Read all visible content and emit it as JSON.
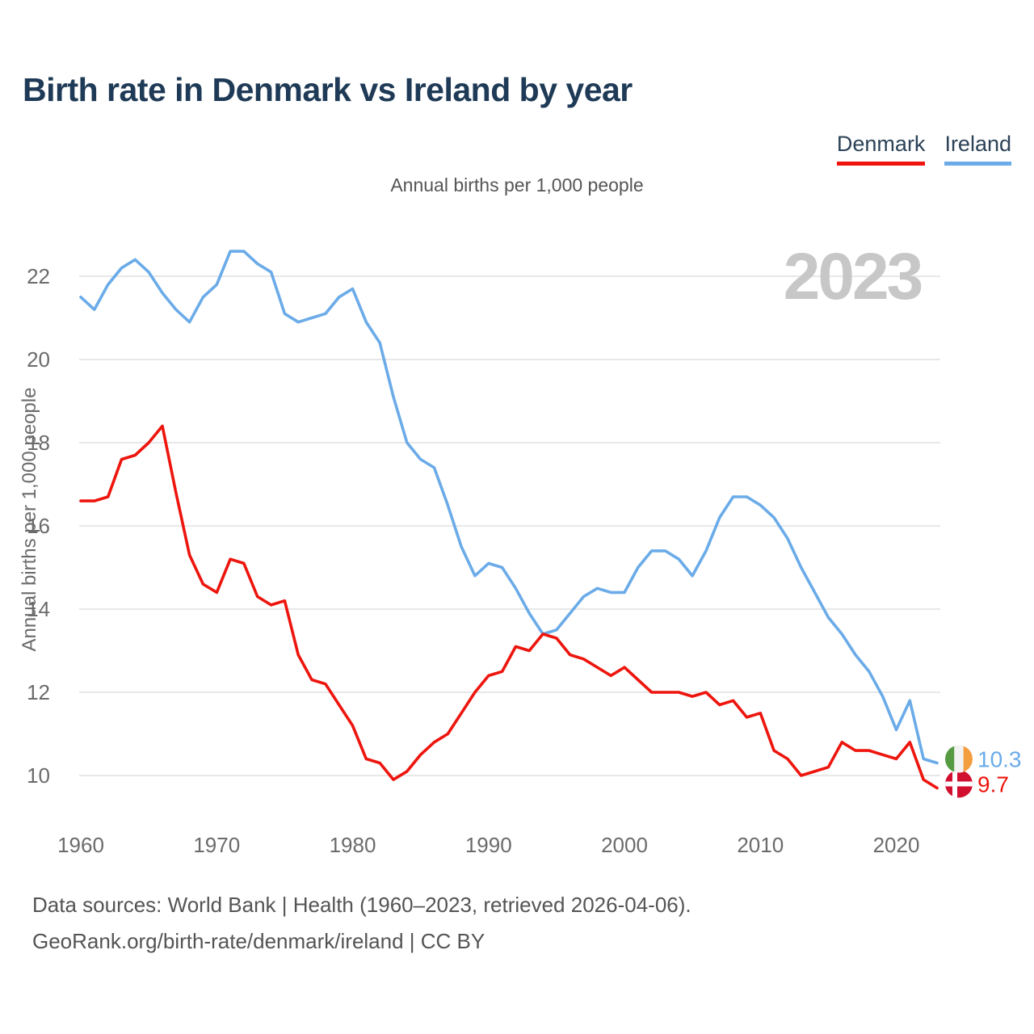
{
  "page": {
    "title": "Birth rate in Denmark vs Ireland by year",
    "subtitle": "Annual births per 1,000 people",
    "watermark": "2023",
    "footer_line1": "Data sources: World Bank | Health (1960–2023, retrieved 2026-04-06).",
    "footer_line2": "GeoRank.org/birth-rate/denmark/ireland | CC BY"
  },
  "legend": [
    {
      "label": "Denmark",
      "color": "#ed150d"
    },
    {
      "label": "Ireland",
      "color": "#6aabe8"
    }
  ],
  "colors": {
    "title": "#1e3a56",
    "grid": "#e8e8e8",
    "tick_text": "#6b6b6b",
    "watermark": "#c7c7c7",
    "denmark_line": "#ed150d",
    "ireland_line": "#6aabe8",
    "flag_ireland_green": "#569a42",
    "flag_ireland_white": "#f2f2f2",
    "flag_ireland_orange": "#f49d3f",
    "flag_denmark_red": "#d11030",
    "flag_denmark_white": "#ffffff"
  },
  "chart_data": {
    "type": "line",
    "title": "Birth rate in Denmark vs Ireland by year",
    "subtitle": "Annual births per 1,000 people",
    "xlabel": "",
    "ylabel": "Annual births per 1,000 people",
    "grid": "horizontal",
    "legend_position": "top-right",
    "watermark": "2023",
    "x_ticks": [
      1960,
      1970,
      1980,
      1990,
      2000,
      2010,
      2020
    ],
    "y_ticks": [
      10,
      12,
      14,
      16,
      18,
      20,
      22
    ],
    "ylim": [
      9.3,
      23.0
    ],
    "x": [
      1960,
      1961,
      1962,
      1963,
      1964,
      1965,
      1966,
      1967,
      1968,
      1969,
      1970,
      1971,
      1972,
      1973,
      1974,
      1975,
      1976,
      1977,
      1978,
      1979,
      1980,
      1981,
      1982,
      1983,
      1984,
      1985,
      1986,
      1987,
      1988,
      1989,
      1990,
      1991,
      1992,
      1993,
      1994,
      1995,
      1996,
      1997,
      1998,
      1999,
      2000,
      2001,
      2002,
      2003,
      2004,
      2005,
      2006,
      2007,
      2008,
      2009,
      2010,
      2011,
      2012,
      2013,
      2014,
      2015,
      2016,
      2017,
      2018,
      2019,
      2020,
      2021,
      2022,
      2023
    ],
    "series": [
      {
        "name": "Denmark",
        "color": "#ed150d",
        "end_label": "9.7",
        "flag": "denmark",
        "values": [
          16.6,
          16.6,
          16.7,
          17.6,
          17.7,
          18.0,
          18.4,
          16.8,
          15.3,
          14.6,
          14.4,
          15.2,
          15.1,
          14.3,
          14.1,
          14.2,
          12.9,
          12.3,
          12.2,
          11.7,
          11.2,
          10.4,
          10.3,
          9.9,
          10.1,
          10.5,
          10.8,
          11.0,
          11.5,
          12.0,
          12.4,
          12.5,
          13.1,
          13.0,
          13.4,
          13.3,
          12.9,
          12.8,
          12.6,
          12.4,
          12.6,
          12.3,
          12.0,
          12.0,
          12.0,
          11.9,
          12.0,
          11.7,
          11.8,
          11.4,
          11.5,
          10.6,
          10.4,
          10.0,
          10.1,
          10.2,
          10.8,
          10.6,
          10.6,
          10.5,
          10.4,
          10.8,
          9.9,
          9.7
        ]
      },
      {
        "name": "Ireland",
        "color": "#6aabe8",
        "end_label": "10.3",
        "flag": "ireland",
        "values": [
          21.5,
          21.2,
          21.8,
          22.2,
          22.4,
          22.1,
          21.6,
          21.2,
          20.9,
          21.5,
          21.8,
          22.6,
          22.6,
          22.3,
          22.1,
          21.1,
          20.9,
          21.0,
          21.1,
          21.5,
          21.7,
          20.9,
          20.4,
          19.1,
          18.0,
          17.6,
          17.4,
          16.5,
          15.5,
          14.8,
          15.1,
          15.0,
          14.5,
          13.9,
          13.4,
          13.5,
          13.9,
          14.3,
          14.5,
          14.4,
          14.4,
          15.0,
          15.4,
          15.4,
          15.2,
          14.8,
          15.4,
          16.2,
          16.7,
          16.7,
          16.5,
          16.2,
          15.7,
          15.0,
          14.4,
          13.8,
          13.4,
          12.9,
          12.5,
          11.9,
          11.1,
          11.8,
          10.4,
          10.3
        ]
      }
    ]
  }
}
